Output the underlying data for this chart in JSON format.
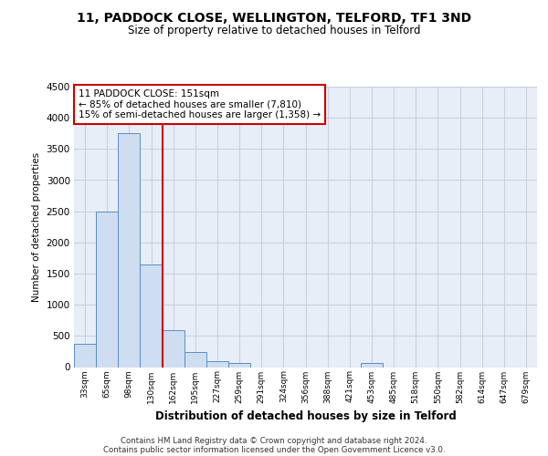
{
  "title_line1": "11, PADDOCK CLOSE, WELLINGTON, TELFORD, TF1 3ND",
  "title_line2": "Size of property relative to detached houses in Telford",
  "xlabel": "Distribution of detached houses by size in Telford",
  "ylabel": "Number of detached properties",
  "categories": [
    "33sqm",
    "65sqm",
    "98sqm",
    "130sqm",
    "162sqm",
    "195sqm",
    "227sqm",
    "259sqm",
    "291sqm",
    "324sqm",
    "356sqm",
    "388sqm",
    "421sqm",
    "453sqm",
    "485sqm",
    "518sqm",
    "550sqm",
    "582sqm",
    "614sqm",
    "647sqm",
    "679sqm"
  ],
  "values": [
    375,
    2500,
    3750,
    1650,
    600,
    240,
    100,
    60,
    0,
    0,
    0,
    0,
    0,
    60,
    0,
    0,
    0,
    0,
    0,
    0,
    0
  ],
  "bar_color": "#cfddf0",
  "bar_edge_color": "#5b8ec4",
  "grid_color": "#c8d0e0",
  "vline_color": "#cc0000",
  "vline_pos": 3.5,
  "annotation_text_line1": "11 PADDOCK CLOSE: 151sqm",
  "annotation_text_line2": "← 85% of detached houses are smaller (7,810)",
  "annotation_text_line3": "15% of semi-detached houses are larger (1,358) →",
  "annotation_box_color": "#cc0000",
  "ylim": [
    0,
    4500
  ],
  "yticks": [
    0,
    500,
    1000,
    1500,
    2000,
    2500,
    3000,
    3500,
    4000,
    4500
  ],
  "footnote_line1": "Contains HM Land Registry data © Crown copyright and database right 2024.",
  "footnote_line2": "Contains public sector information licensed under the Open Government Licence v3.0.",
  "bg_color": "#ffffff",
  "plot_bg_color": "#e8eef8"
}
